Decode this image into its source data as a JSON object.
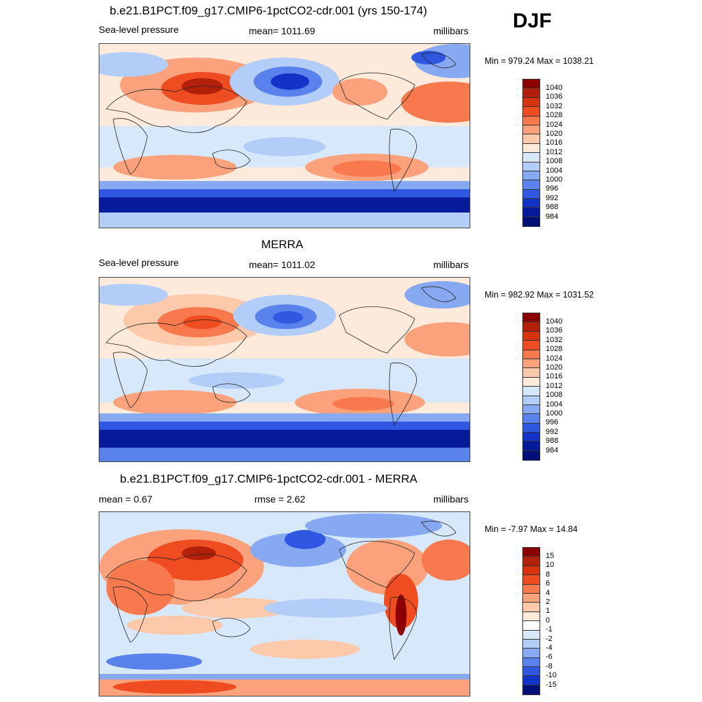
{
  "season": "DJF",
  "panels": [
    {
      "title": "b.e21.B1PCT.f09_g17.CMIP6-1pctCO2-cdr.001 (yrs 150-174)",
      "left_label": "Sea-level pressure",
      "center_label": "mean= 1011.69",
      "right_label": "millibars",
      "minmax": "Min = 979.24 Max = 1038.21",
      "colorbar_ticks": [
        "1040",
        "1036",
        "1032",
        "1028",
        "1024",
        "1020",
        "1016",
        "1012",
        "1008",
        "1004",
        "1000",
        "996",
        "992",
        "988",
        "984"
      ]
    },
    {
      "title": "MERRA",
      "left_label": "Sea-level pressure",
      "center_label": "mean= 1011.02",
      "right_label": "millibars",
      "minmax": "Min = 982.92 Max = 1031.52",
      "colorbar_ticks": [
        "1040",
        "1036",
        "1032",
        "1028",
        "1024",
        "1020",
        "1016",
        "1012",
        "1008",
        "1004",
        "1000",
        "996",
        "992",
        "988",
        "984"
      ]
    },
    {
      "title": "b.e21.B1PCT.f09_g17.CMIP6-1pctCO2-cdr.001 - MERRA",
      "left_label": "mean =   0.67",
      "center_label": "rmse =   2.62",
      "right_label": "millibars",
      "minmax": "Min =  -7.97 Max =  14.84",
      "colorbar_ticks": [
        "15",
        "10",
        "8",
        "6",
        "4",
        "2",
        "1",
        "0",
        "-1",
        "-2",
        "-4",
        "-6",
        "-8",
        "-10",
        "-15"
      ]
    }
  ],
  "colors": {
    "abs_scale": [
      "#8b0000",
      "#b3200a",
      "#d8330f",
      "#f04c22",
      "#f8794d",
      "#fba27c",
      "#fcc9ab",
      "#feeadb",
      "#d8e8fb",
      "#b2cdf7",
      "#87a9f2",
      "#5a82ec",
      "#2f57e2",
      "#1232c8",
      "#061a9c",
      "#000f78"
    ],
    "diff_scale": [
      "#8b0000",
      "#b3200a",
      "#d8330f",
      "#f04c22",
      "#f8794d",
      "#fba27c",
      "#fcc9ab",
      "#feeadb",
      "#ffffff",
      "#d8e8fb",
      "#b2cdf7",
      "#87a9f2",
      "#5a82ec",
      "#2f57e2",
      "#1232c8",
      "#000f78"
    ],
    "land_outline": "#222222"
  }
}
